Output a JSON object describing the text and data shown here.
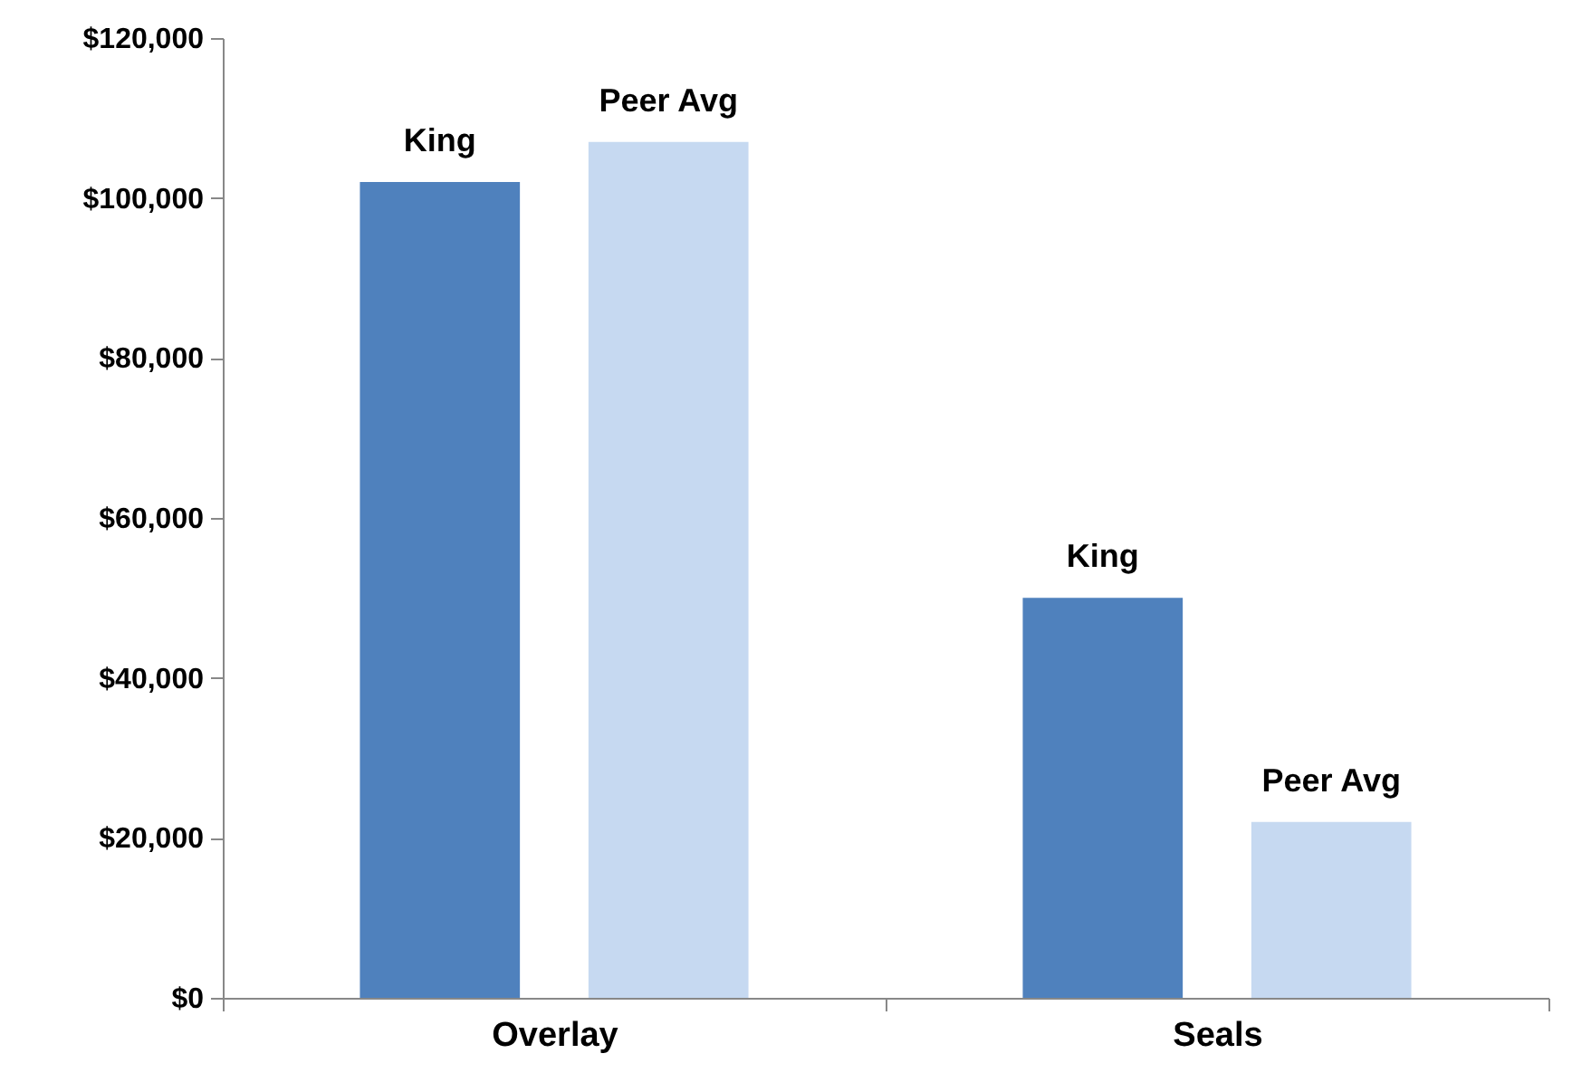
{
  "chart_data": {
    "type": "bar",
    "categories": [
      "Overlay",
      "Seals"
    ],
    "series": [
      {
        "name": "King",
        "color": "#4f81bd",
        "values": [
          102000,
          50000
        ]
      },
      {
        "name": "Peer Avg",
        "color": "#c6d9f1",
        "values": [
          107000,
          22000
        ]
      }
    ],
    "ylim": [
      0,
      120000
    ],
    "yticks": [
      {
        "value": 0,
        "label": "$0"
      },
      {
        "value": 20000,
        "label": "$20,000"
      },
      {
        "value": 40000,
        "label": "$40,000"
      },
      {
        "value": 60000,
        "label": "$60,000"
      },
      {
        "value": 80000,
        "label": "$80,000"
      },
      {
        "value": 100000,
        "label": "$100,000"
      },
      {
        "value": 120000,
        "label": "$120,000"
      }
    ],
    "grid": false,
    "legend": false
  }
}
